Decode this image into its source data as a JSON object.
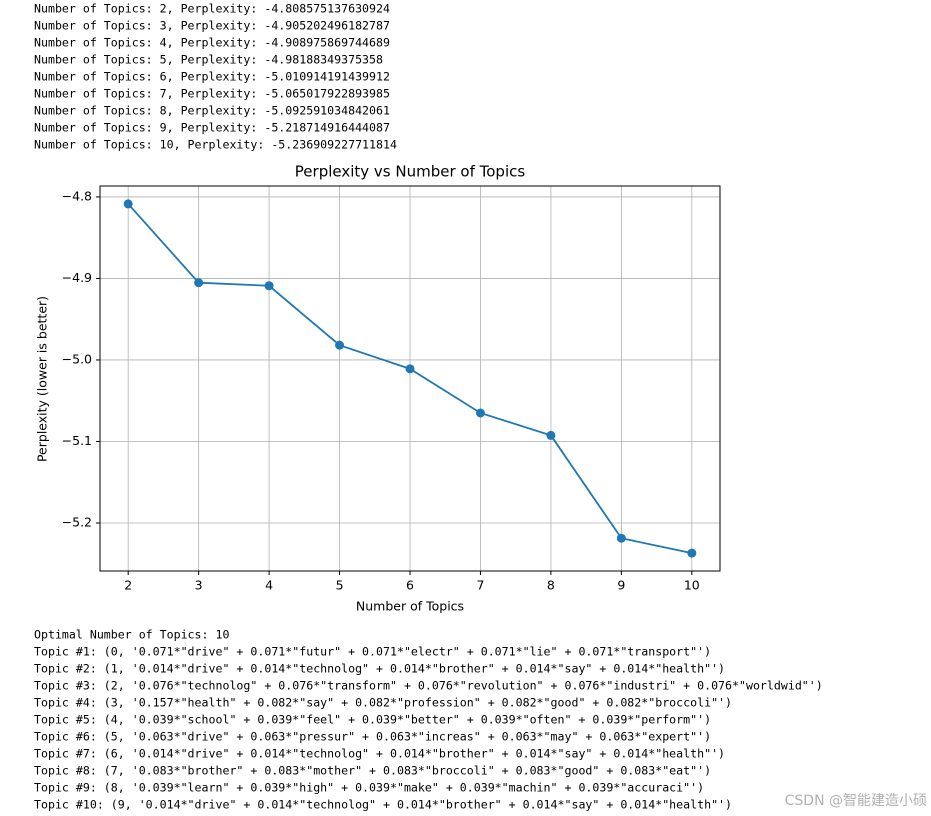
{
  "output_before": [
    "Number of Topics: 2, Perplexity: -4.808575137630924",
    "Number of Topics: 3, Perplexity: -4.905202496182787",
    "Number of Topics: 4, Perplexity: -4.908975869744689",
    "Number of Topics: 5, Perplexity: -4.98188349375358",
    "Number of Topics: 6, Perplexity: -5.010914191439912",
    "Number of Topics: 7, Perplexity: -5.065017922893985",
    "Number of Topics: 8, Perplexity: -5.092591034842061",
    "Number of Topics: 9, Perplexity: -5.218714916444087",
    "Number of Topics: 10, Perplexity: -5.236909227711814"
  ],
  "chart_data": {
    "type": "line",
    "title": "Perplexity vs Number of Topics",
    "x_label": "Number of Topics",
    "y_label": "Perplexity (lower is better)",
    "x": [
      2,
      3,
      4,
      5,
      6,
      7,
      8,
      9,
      10
    ],
    "values": [
      -4.808575137630924,
      -4.905202496182787,
      -4.908975869744689,
      -4.98188349375358,
      -5.010914191439912,
      -5.065017922893985,
      -5.092591034842061,
      -5.218714916444087,
      -5.236909227711814
    ],
    "color": "#1f77b4",
    "marker": "o",
    "grid": true,
    "xlim": [
      1.6,
      10.4
    ],
    "xticks": [
      2,
      3,
      4,
      5,
      6,
      7,
      8,
      9,
      10
    ],
    "ylim": [
      -5.2589,
      -4.7866
    ],
    "yticks": [
      {
        "value": -4.8,
        "label": "−4.8"
      },
      {
        "value": -4.9,
        "label": "−4.9"
      },
      {
        "value": -5.0,
        "label": "−5.0"
      },
      {
        "value": -5.1,
        "label": "−5.1"
      },
      {
        "value": -5.2,
        "label": "−5.2"
      }
    ]
  },
  "output_after": [
    "Optimal Number of Topics: 10",
    "Topic #1: (0, '0.071*\"drive\" + 0.071*\"futur\" + 0.071*\"electr\" + 0.071*\"lie\" + 0.071*\"transport\"')",
    "Topic #2: (1, '0.014*\"drive\" + 0.014*\"technolog\" + 0.014*\"brother\" + 0.014*\"say\" + 0.014*\"health\"')",
    "Topic #3: (2, '0.076*\"technolog\" + 0.076*\"transform\" + 0.076*\"revolution\" + 0.076*\"industri\" + 0.076*\"worldwid\"')",
    "Topic #4: (3, '0.157*\"health\" + 0.082*\"say\" + 0.082*\"profession\" + 0.082*\"good\" + 0.082*\"broccoli\"')",
    "Topic #5: (4, '0.039*\"school\" + 0.039*\"feel\" + 0.039*\"better\" + 0.039*\"often\" + 0.039*\"perform\"')",
    "Topic #6: (5, '0.063*\"drive\" + 0.063*\"pressur\" + 0.063*\"increas\" + 0.063*\"may\" + 0.063*\"expert\"')",
    "Topic #7: (6, '0.014*\"drive\" + 0.014*\"technolog\" + 0.014*\"brother\" + 0.014*\"say\" + 0.014*\"health\"')",
    "Topic #8: (7, '0.083*\"brother\" + 0.083*\"mother\" + 0.083*\"broccoli\" + 0.083*\"good\" + 0.083*\"eat\"')",
    "Topic #9: (8, '0.039*\"learn\" + 0.039*\"high\" + 0.039*\"make\" + 0.039*\"machin\" + 0.039*\"accuraci\"')",
    "Topic #10: (9, '0.014*\"drive\" + 0.014*\"technolog\" + 0.014*\"brother\" + 0.014*\"say\" + 0.014*\"health\"')"
  ],
  "watermark": "CSDN @智能建造小硕"
}
